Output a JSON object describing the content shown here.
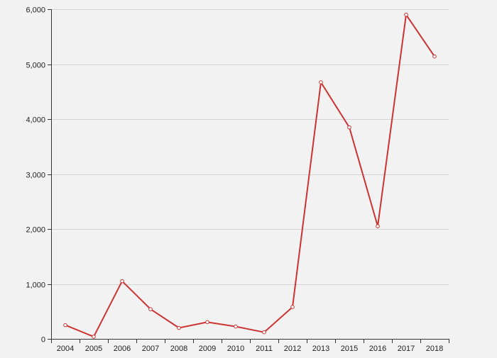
{
  "chart_data": {
    "type": "line",
    "title": "",
    "xlabel": "",
    "ylabel": "",
    "categories": [
      "2004",
      "2005",
      "2006",
      "2007",
      "2008",
      "2009",
      "2010",
      "2011",
      "2012",
      "2013",
      "2015",
      "2016",
      "2017",
      "2018"
    ],
    "series": [
      {
        "values": [
          250,
          40,
          1050,
          540,
          200,
          305,
          225,
          120,
          580,
          4670,
          3850,
          2050,
          5900,
          5140
        ]
      }
    ],
    "ylim": [
      0,
      6000
    ],
    "y_ticks": [
      0,
      1000,
      2000,
      3000,
      4000,
      5000,
      6000
    ],
    "y_tick_labels": [
      "0",
      "1,000",
      "2,000",
      "3,000",
      "4,000",
      "5,000",
      "6,000"
    ],
    "grid": true,
    "legend": "none",
    "colors": {
      "series": "#cc3333",
      "point_stroke": "#cc3333",
      "background": "#f2f2f2",
      "grid": "#d4d4d4"
    }
  }
}
